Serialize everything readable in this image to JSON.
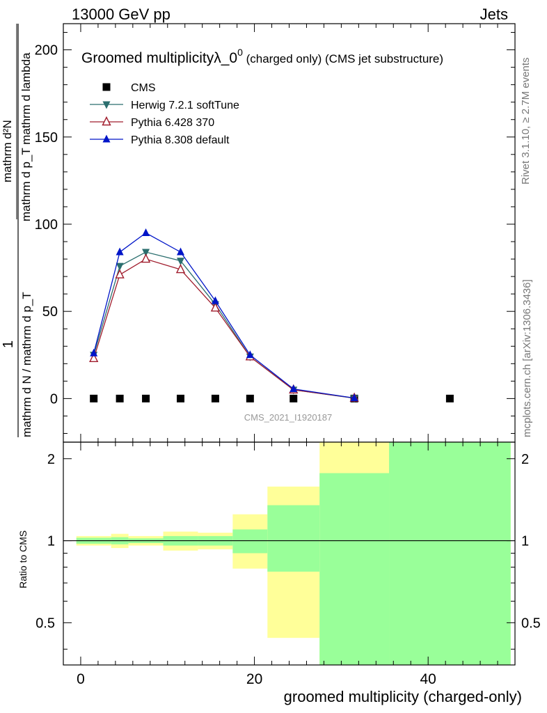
{
  "header": {
    "energy": "13000 GeV pp",
    "process": "Jets",
    "side_upper": "Rivet 3.1.10, ≥ 2.7M events",
    "side_lower": "mcplots.cern.ch [arXiv:1306.3436]",
    "analysis_id": "CMS_2021_I1920187"
  },
  "colors": {
    "cms": "#000000",
    "herwig": "#2a6e6e",
    "pythia6": "#a01c2c",
    "pythia8": "#0015c8",
    "band_yellow": "#ffff99",
    "band_green": "#99ff99"
  },
  "chart_data": [
    {
      "type": "line",
      "title_main": "Groomed multiplicityλ_0",
      "title_sup": "0",
      "title_tail": " (charged only) (CMS jet substructure)",
      "ylabel_num": "mathrm d²N",
      "ylabel_den": "mathrm d p_T mathrm d lambda",
      "ylabel_den_sub": "T",
      "ylabel_prefix_num": "1",
      "ylabel_prefix_den": "mathrm d N / mathrm d p_T",
      "ylabel_prefix_den_sub": "T",
      "xlim": [
        -2,
        50
      ],
      "ylim": [
        -25,
        215
      ],
      "yticks": [
        0,
        50,
        100,
        150,
        200
      ],
      "ytick_labels": [
        "0",
        "50",
        "100",
        "150",
        "200"
      ],
      "legend": [
        "CMS",
        "Herwig 7.2.1 softTune",
        "Pythia 6.428 370",
        "Pythia 8.308 default"
      ],
      "legend_position": "top-left",
      "series": [
        {
          "name": "CMS",
          "marker": "square",
          "x": [
            1.5,
            4.5,
            7.5,
            11.5,
            15.5,
            19.5,
            24.5,
            31.5,
            42.5
          ],
          "y": [
            0,
            0,
            0,
            0,
            0,
            0,
            0,
            0,
            0
          ]
        },
        {
          "name": "Herwig 7.2.1 softTune",
          "marker": "triangle-down",
          "x": [
            1.5,
            4.5,
            7.5,
            11.5,
            15.5,
            19.5,
            24.5,
            31.5
          ],
          "y": [
            25,
            76,
            84,
            79,
            54,
            24,
            5,
            0.2
          ]
        },
        {
          "name": "Pythia 6.428 370",
          "marker": "triangle-open",
          "x": [
            1.5,
            4.5,
            7.5,
            11.5,
            15.5,
            19.5,
            24.5,
            31.5
          ],
          "y": [
            23,
            71,
            80,
            74,
            52,
            24,
            5,
            0.3
          ]
        },
        {
          "name": "Pythia 8.308 default",
          "marker": "triangle-up",
          "x": [
            1.5,
            4.5,
            7.5,
            11.5,
            15.5,
            19.5,
            24.5,
            31.5
          ],
          "y": [
            26,
            84,
            95,
            84,
            56,
            25,
            5.5,
            0.3
          ]
        }
      ]
    },
    {
      "type": "area",
      "ylabel": "Ratio to CMS",
      "xlabel": "groomed multiplicity (charged-only)",
      "xlim": [
        -2,
        50
      ],
      "ylim": [
        0.35,
        2.3
      ],
      "xticks": [
        0,
        20,
        40
      ],
      "xtick_labels": [
        "0",
        "20",
        "40"
      ],
      "yticks": [
        0.5,
        1,
        2
      ],
      "ytick_labels": [
        "0.5",
        "1",
        "2"
      ],
      "reference": 1,
      "bins": [
        {
          "x0": -0.5,
          "x1": 3.5,
          "yellow": [
            0.96,
            1.04
          ],
          "green": [
            0.975,
            1.025
          ]
        },
        {
          "x0": 3.5,
          "x1": 5.5,
          "yellow": [
            0.94,
            1.06
          ],
          "green": [
            0.97,
            1.03
          ]
        },
        {
          "x0": 5.5,
          "x1": 9.5,
          "yellow": [
            0.96,
            1.04
          ],
          "green": [
            0.98,
            1.02
          ]
        },
        {
          "x0": 9.5,
          "x1": 13.5,
          "yellow": [
            0.92,
            1.08
          ],
          "green": [
            0.96,
            1.04
          ]
        },
        {
          "x0": 13.5,
          "x1": 17.5,
          "yellow": [
            0.93,
            1.07
          ],
          "green": [
            0.96,
            1.04
          ]
        },
        {
          "x0": 17.5,
          "x1": 21.5,
          "yellow": [
            0.79,
            1.25
          ],
          "green": [
            0.9,
            1.1
          ]
        },
        {
          "x0": 21.5,
          "x1": 27.5,
          "yellow": [
            0.44,
            1.58
          ],
          "green": [
            0.77,
            1.35
          ]
        },
        {
          "x0": 27.5,
          "x1": 35.5,
          "yellow": [
            0.35,
            2.3
          ],
          "green": [
            0.35,
            1.77
          ]
        },
        {
          "x0": 35.5,
          "x1": 49.5,
          "yellow": [
            0.35,
            2.3
          ],
          "green": [
            0.35,
            2.3
          ]
        }
      ]
    }
  ]
}
